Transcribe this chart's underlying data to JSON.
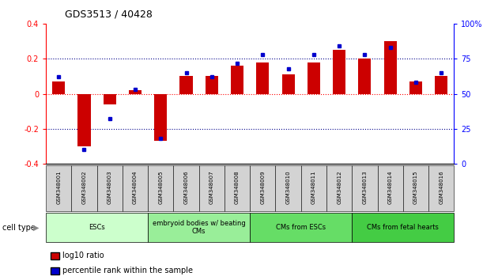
{
  "title": "GDS3513 / 40428",
  "samples": [
    "GSM348001",
    "GSM348002",
    "GSM348003",
    "GSM348004",
    "GSM348005",
    "GSM348006",
    "GSM348007",
    "GSM348008",
    "GSM348009",
    "GSM348010",
    "GSM348011",
    "GSM348012",
    "GSM348013",
    "GSM348014",
    "GSM348015",
    "GSM348016"
  ],
  "log10_ratio": [
    0.07,
    -0.3,
    -0.06,
    0.02,
    -0.27,
    0.1,
    0.1,
    0.16,
    0.18,
    0.11,
    0.18,
    0.25,
    0.2,
    0.3,
    0.07,
    0.1
  ],
  "percentile_rank": [
    62,
    10,
    32,
    53,
    18,
    65,
    62,
    72,
    78,
    68,
    78,
    84,
    78,
    83,
    58,
    65
  ],
  "bar_color": "#cc0000",
  "dot_color": "#0000cc",
  "cell_types": [
    {
      "label": "ESCs",
      "start": 0,
      "end": 3,
      "color": "#ccffcc"
    },
    {
      "label": "embryoid bodies w/ beating\nCMs",
      "start": 4,
      "end": 7,
      "color": "#99ee99"
    },
    {
      "label": "CMs from ESCs",
      "start": 8,
      "end": 11,
      "color": "#66dd66"
    },
    {
      "label": "CMs from fetal hearts",
      "start": 12,
      "end": 15,
      "color": "#44cc44"
    }
  ],
  "ylim_left": [
    -0.4,
    0.4
  ],
  "ylim_right": [
    0,
    100
  ],
  "yticks_left": [
    -0.4,
    -0.2,
    0.0,
    0.2,
    0.4
  ],
  "yticks_right": [
    0,
    25,
    50,
    75,
    100
  ],
  "ytick_labels_right": [
    "0",
    "25",
    "50",
    "75",
    "100%"
  ],
  "legend_red": "log10 ratio",
  "legend_blue": "percentile rank within the sample",
  "cell_type_label": "cell type",
  "sample_box_color": "#d3d3d3",
  "bar_width": 0.5
}
